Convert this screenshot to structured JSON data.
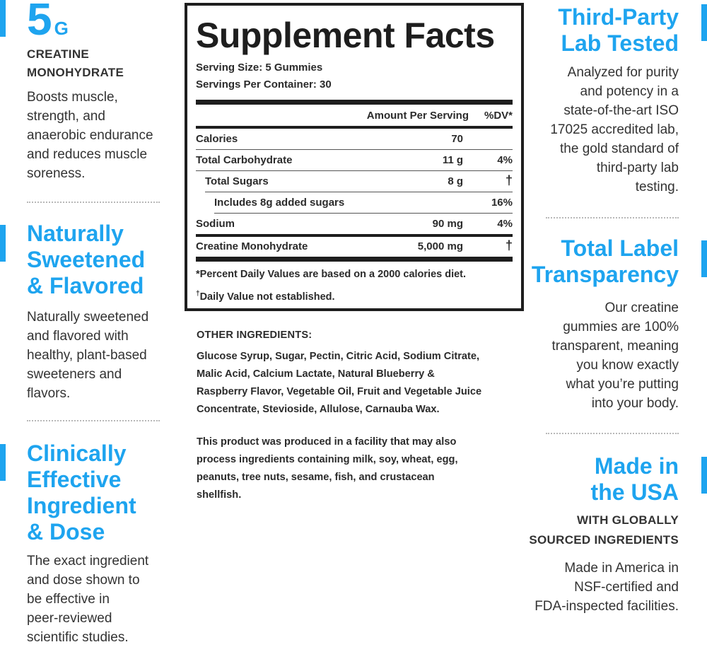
{
  "colors": {
    "accent": "#1ea4ef",
    "text": "#333333",
    "panel_border": "#1e1e1e"
  },
  "left": {
    "creatine": {
      "big": "5",
      "unit": "G",
      "caps_line1": "CREATINE",
      "caps_line2": "MONOHYDRATE",
      "body": [
        "Boosts muscle,",
        "strength, and",
        "anaerobic endurance",
        "and reduces muscle",
        "soreness."
      ]
    },
    "sweetened": {
      "heading": [
        "Naturally",
        "Sweetened",
        "& Flavored"
      ],
      "body": [
        "Naturally sweetened",
        "and flavored with",
        "healthy, plant-based",
        "sweeteners and",
        "flavors."
      ]
    },
    "clinical": {
      "heading": [
        "Clinically",
        "Effective",
        "Ingredient",
        "& Dose"
      ],
      "body": [
        "The exact ingredient",
        "and dose shown to",
        "be effective in",
        "peer-reviewed",
        "scientific studies."
      ]
    }
  },
  "facts": {
    "title": "Supplement Facts",
    "serving_size": "Serving Size: 5 Gummies",
    "servings_per_container": "Servings Per Container: 30",
    "col_amount": "Amount Per Serving",
    "col_dv": "%DV*",
    "rows": [
      {
        "label": "Calories",
        "amount": "70",
        "dv": ""
      },
      {
        "label": "Total Carbohydrate",
        "amount": "11 g",
        "dv": "4%"
      },
      {
        "label": "Total Sugars",
        "amount": "8 g",
        "dv": "†"
      },
      {
        "label": "Includes 8g added sugars",
        "amount": "",
        "dv": "16%"
      },
      {
        "label": "Sodium",
        "amount": "90 mg",
        "dv": "4%"
      }
    ],
    "creatine_row": {
      "label": "Creatine Monohydrate",
      "amount": "5,000 mg",
      "dv": "†"
    },
    "footnote1": "*Percent Daily Values are based on a 2000 calories diet.",
    "footnote2_mark": "†",
    "footnote2": "Daily Value not established."
  },
  "other": {
    "heading": "OTHER INGREDIENTS:",
    "lines": [
      "Glucose Syrup, Sugar, Pectin, Citric Acid, Sodium Citrate,",
      "Malic Acid, Calcium Lactate, Natural Blueberry &",
      "Raspberry Flavor, Vegetable Oil, Fruit and Vegetable Juice",
      "Concentrate, Stevioside, Allulose, Carnauba Wax."
    ],
    "allergen": [
      "This product was produced in a facility that may also",
      "process ingredients containing milk, soy, wheat, egg,",
      "peanuts, tree nuts, sesame, fish, and crustacean",
      "shellfish."
    ]
  },
  "right": {
    "lab": {
      "heading": [
        "Third-Party",
        "Lab Tested"
      ],
      "body": [
        "Analyzed for purity",
        "and potency in a",
        "state-of-the-art ISO",
        "17025 accredited lab,",
        "the gold standard of",
        "third-party lab",
        "testing."
      ]
    },
    "transparency": {
      "heading": [
        "Total Label",
        "Transparency"
      ],
      "body": [
        "Our creatine",
        "gummies are 100%",
        "transparent, meaning",
        "you know exactly",
        "what you’re putting",
        "into your body."
      ]
    },
    "usa": {
      "heading": [
        "Made in",
        "the USA"
      ],
      "caps_line1": "WITH GLOBALLY",
      "caps_line2": "SOURCED INGREDIENTS",
      "body": [
        "Made in America in",
        "NSF-certified and",
        "FDA-inspected facilities."
      ]
    }
  }
}
